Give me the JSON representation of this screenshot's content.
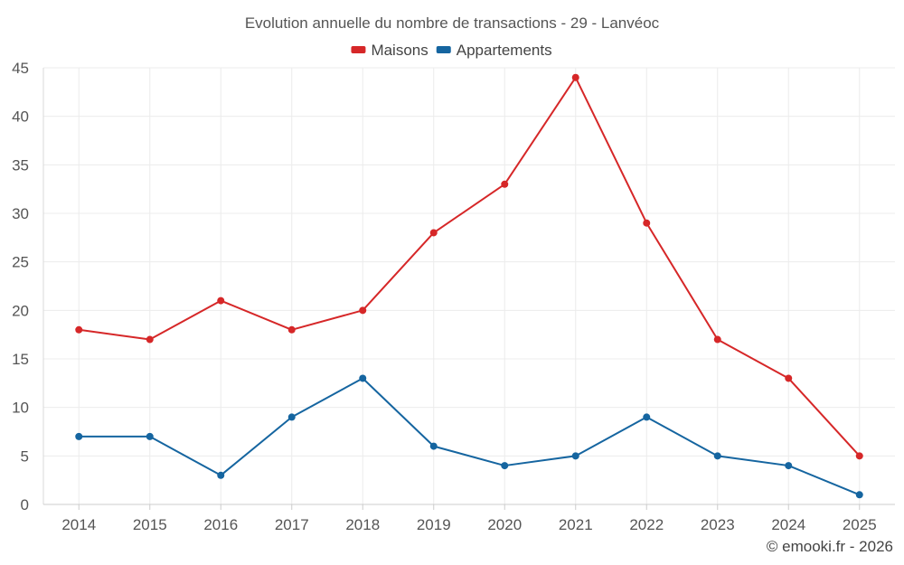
{
  "chart_data": {
    "type": "line",
    "title": "Evolution annuelle du nombre de transactions - 29 - Lanvéoc",
    "categories": [
      "2014",
      "2015",
      "2016",
      "2017",
      "2018",
      "2019",
      "2020",
      "2021",
      "2022",
      "2023",
      "2024",
      "2025"
    ],
    "series": [
      {
        "name": "Maisons",
        "color": "#d62728",
        "values": [
          18,
          17,
          21,
          18,
          20,
          28,
          33,
          44,
          29,
          17,
          13,
          5
        ]
      },
      {
        "name": "Appartements",
        "color": "#1565a0",
        "values": [
          7,
          7,
          3,
          9,
          13,
          6,
          4,
          5,
          9,
          5,
          4,
          1
        ]
      }
    ],
    "ylim": [
      0,
      45
    ],
    "yticks": [
      0,
      5,
      10,
      15,
      20,
      25,
      30,
      35,
      40,
      45
    ],
    "xlabel": "",
    "ylabel": "",
    "grid": true,
    "legend_position": "top-center"
  },
  "credit": "© emooki.fr - 2026"
}
